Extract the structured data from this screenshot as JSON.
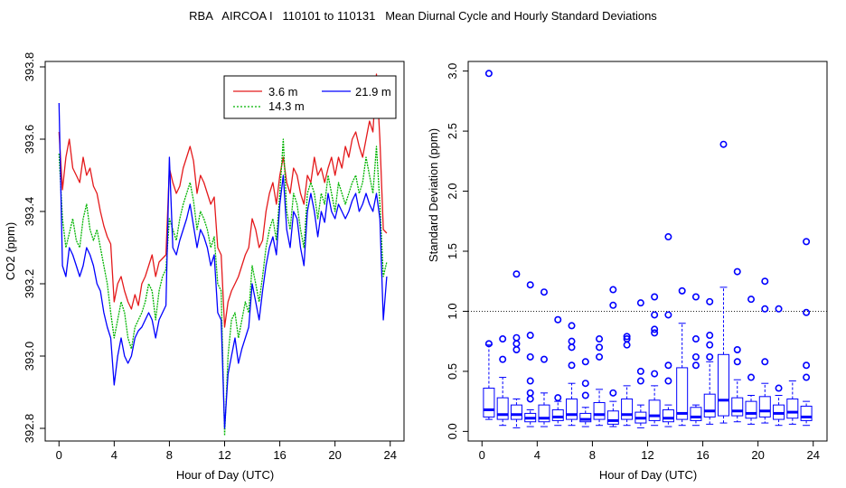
{
  "title": "RBA   AIRCOA I   110101 to 110131   Mean Diurnal Cycle and Hourly Standard Deviations",
  "chart_data": [
    {
      "type": "line",
      "xlabel": "Hour of Day (UTC)",
      "ylabel": "CO2 (ppm)",
      "xlim": [
        -1,
        25
      ],
      "ylim": [
        392.8,
        393.8
      ],
      "xticks": [
        "0",
        "4",
        "8",
        "12",
        "16",
        "20",
        "24"
      ],
      "yticks": [
        "392.8",
        "393.0",
        "393.2",
        "393.4",
        "393.6",
        "393.8"
      ],
      "x": [
        0,
        0.25,
        0.5,
        0.75,
        1,
        1.25,
        1.5,
        1.75,
        2,
        2.25,
        2.5,
        2.75,
        3,
        3.25,
        3.5,
        3.75,
        4,
        4.25,
        4.5,
        4.75,
        5,
        5.25,
        5.5,
        5.75,
        6,
        6.25,
        6.5,
        6.75,
        7,
        7.25,
        7.5,
        7.75,
        8,
        8.25,
        8.5,
        8.75,
        9,
        9.25,
        9.5,
        9.75,
        10,
        10.25,
        10.5,
        10.75,
        11,
        11.25,
        11.5,
        11.75,
        12,
        12.25,
        12.5,
        12.75,
        13,
        13.25,
        13.5,
        13.75,
        14,
        14.25,
        14.5,
        14.75,
        15,
        15.25,
        15.5,
        15.75,
        16,
        16.25,
        16.5,
        16.75,
        17,
        17.25,
        17.5,
        17.75,
        18,
        18.25,
        18.5,
        18.75,
        19,
        19.25,
        19.5,
        19.75,
        20,
        20.25,
        20.5,
        20.75,
        21,
        21.25,
        21.5,
        21.75,
        22,
        22.25,
        22.5,
        22.75,
        23,
        23.25,
        23.5,
        23.75
      ],
      "legend": [
        "3.6 m",
        "14.3 m",
        "21.9 m"
      ],
      "series": [
        {
          "name": "3.6 m",
          "color": "#e41a1c",
          "values": [
            393.62,
            393.46,
            393.55,
            393.6,
            393.52,
            393.5,
            393.48,
            393.55,
            393.5,
            393.52,
            393.47,
            393.45,
            393.4,
            393.36,
            393.33,
            393.31,
            393.15,
            393.2,
            393.22,
            393.18,
            393.15,
            393.13,
            393.17,
            393.14,
            393.2,
            393.22,
            393.25,
            393.28,
            393.22,
            393.26,
            393.27,
            393.28,
            393.52,
            393.48,
            393.45,
            393.47,
            393.52,
            393.55,
            393.58,
            393.54,
            393.45,
            393.5,
            393.48,
            393.45,
            393.42,
            393.44,
            393.3,
            393.28,
            393.08,
            393.15,
            393.18,
            393.2,
            393.22,
            393.25,
            393.28,
            393.3,
            393.38,
            393.35,
            393.3,
            393.32,
            393.4,
            393.45,
            393.48,
            393.42,
            393.5,
            393.55,
            393.48,
            393.45,
            393.52,
            393.5,
            393.45,
            393.42,
            393.5,
            393.48,
            393.55,
            393.5,
            393.52,
            393.48,
            393.52,
            393.55,
            393.5,
            393.55,
            393.52,
            393.58,
            393.55,
            393.6,
            393.62,
            393.58,
            393.55,
            393.6,
            393.65,
            393.62,
            393.78,
            393.6,
            393.35,
            393.34
          ]
        },
        {
          "name": "14.3 m",
          "color": "#00b400",
          "values": [
            393.56,
            393.38,
            393.3,
            393.34,
            393.38,
            393.32,
            393.3,
            393.38,
            393.42,
            393.35,
            393.32,
            393.35,
            393.3,
            393.25,
            393.2,
            393.12,
            393.05,
            393.1,
            393.15,
            393.12,
            393.05,
            393.02,
            393.08,
            393.1,
            393.12,
            393.15,
            393.2,
            393.18,
            393.1,
            393.18,
            393.22,
            393.24,
            393.38,
            393.35,
            393.32,
            393.38,
            393.42,
            393.45,
            393.48,
            393.43,
            393.35,
            393.4,
            393.38,
            393.35,
            393.3,
            393.33,
            393.2,
            393.18,
            392.78,
            393.0,
            393.1,
            393.12,
            393.05,
            393.1,
            393.15,
            393.12,
            393.25,
            393.2,
            393.15,
            393.22,
            393.3,
            393.35,
            393.38,
            393.32,
            393.45,
            393.6,
            393.4,
            393.35,
            393.45,
            393.42,
            393.35,
            393.3,
            393.45,
            393.48,
            393.45,
            393.38,
            393.45,
            393.42,
            393.5,
            393.45,
            393.4,
            393.48,
            393.45,
            393.42,
            393.45,
            393.48,
            393.5,
            393.45,
            393.48,
            393.55,
            393.5,
            393.45,
            393.58,
            393.42,
            393.22,
            393.26
          ]
        },
        {
          "name": "21.9 m",
          "color": "#0000ff",
          "values": [
            393.7,
            393.25,
            393.22,
            393.3,
            393.28,
            393.25,
            393.22,
            393.25,
            393.3,
            393.28,
            393.25,
            393.2,
            393.18,
            393.12,
            393.08,
            393.05,
            392.92,
            393.0,
            393.05,
            393.0,
            392.98,
            393.0,
            393.05,
            393.07,
            393.08,
            393.1,
            393.12,
            393.1,
            393.05,
            393.1,
            393.12,
            393.14,
            393.55,
            393.3,
            393.28,
            393.32,
            393.35,
            393.38,
            393.42,
            393.36,
            393.3,
            393.35,
            393.33,
            393.3,
            393.25,
            393.28,
            393.12,
            393.1,
            392.8,
            392.95,
            393.0,
            393.05,
            392.98,
            393.02,
            393.05,
            393.08,
            393.2,
            393.15,
            393.1,
            393.18,
            393.25,
            393.3,
            393.33,
            393.28,
            393.42,
            393.5,
            393.35,
            393.3,
            393.4,
            393.38,
            393.3,
            393.25,
            393.4,
            393.45,
            393.4,
            393.33,
            393.4,
            393.37,
            393.45,
            393.4,
            393.38,
            393.42,
            393.4,
            393.38,
            393.4,
            393.43,
            393.45,
            393.4,
            393.42,
            393.45,
            393.42,
            393.4,
            393.45,
            393.38,
            393.1,
            393.22
          ]
        }
      ]
    },
    {
      "type": "box",
      "xlabel": "Hour of Day (UTC)",
      "ylabel": "Standard Deviation (ppm)",
      "xlim": [
        -1,
        25
      ],
      "ylim": [
        0,
        3.0
      ],
      "xticks": [
        "0",
        "4",
        "8",
        "12",
        "16",
        "20",
        "24"
      ],
      "yticks": [
        "0.0",
        "0.5",
        "1.0",
        "1.5",
        "2.0",
        "2.5",
        "3.0"
      ],
      "reference_line": 1.0,
      "boxes": [
        {
          "hour": 0.5,
          "low": 0.1,
          "q1": 0.12,
          "median": 0.18,
          "q3": 0.36,
          "high": 0.72,
          "outliers": [
            0.73,
            2.98
          ]
        },
        {
          "hour": 1.5,
          "low": 0.05,
          "q1": 0.1,
          "median": 0.14,
          "q3": 0.28,
          "high": 0.45,
          "outliers": [
            0.6,
            0.77
          ]
        },
        {
          "hour": 2.5,
          "low": 0.03,
          "q1": 0.1,
          "median": 0.14,
          "q3": 0.22,
          "high": 0.27,
          "outliers": [
            0.68,
            0.73,
            0.78,
            1.31
          ]
        },
        {
          "hour": 3.5,
          "low": 0.04,
          "q1": 0.08,
          "median": 0.11,
          "q3": 0.15,
          "high": 0.18,
          "outliers": [
            0.27,
            0.32,
            0.42,
            0.62,
            0.8,
            1.22
          ]
        },
        {
          "hour": 4.5,
          "low": 0.04,
          "q1": 0.08,
          "median": 0.11,
          "q3": 0.22,
          "high": 0.32,
          "outliers": [
            0.6,
            1.16
          ]
        },
        {
          "hour": 5.5,
          "low": 0.05,
          "q1": 0.09,
          "median": 0.12,
          "q3": 0.18,
          "high": 0.25,
          "outliers": [
            0.28,
            0.93
          ]
        },
        {
          "hour": 6.5,
          "low": 0.05,
          "q1": 0.1,
          "median": 0.14,
          "q3": 0.27,
          "high": 0.4,
          "outliers": [
            0.55,
            0.7,
            0.75,
            0.88
          ]
        },
        {
          "hour": 7.5,
          "low": 0.04,
          "q1": 0.08,
          "median": 0.1,
          "q3": 0.15,
          "high": 0.2,
          "outliers": [
            0.3,
            0.4,
            0.58
          ]
        },
        {
          "hour": 8.5,
          "low": 0.05,
          "q1": 0.1,
          "median": 0.14,
          "q3": 0.24,
          "high": 0.35,
          "outliers": [
            0.62,
            0.7,
            0.77
          ]
        },
        {
          "hour": 9.5,
          "low": 0.04,
          "q1": 0.06,
          "median": 0.09,
          "q3": 0.17,
          "high": 0.25,
          "outliers": [
            0.32,
            1.05,
            1.18
          ]
        },
        {
          "hour": 10.5,
          "low": 0.05,
          "q1": 0.1,
          "median": 0.14,
          "q3": 0.27,
          "high": 0.38,
          "outliers": [
            0.72,
            0.77,
            0.79
          ]
        },
        {
          "hour": 11.5,
          "low": 0.03,
          "q1": 0.07,
          "median": 0.11,
          "q3": 0.16,
          "high": 0.22,
          "outliers": [
            0.42,
            0.5,
            1.07
          ]
        },
        {
          "hour": 12.5,
          "low": 0.05,
          "q1": 0.09,
          "median": 0.13,
          "q3": 0.26,
          "high": 0.38,
          "outliers": [
            0.48,
            0.82,
            0.85,
            0.97,
            1.12
          ]
        },
        {
          "hour": 13.5,
          "low": 0.04,
          "q1": 0.08,
          "median": 0.11,
          "q3": 0.18,
          "high": 0.22,
          "outliers": [
            0.42,
            0.55,
            0.97,
            1.62
          ]
        },
        {
          "hour": 14.5,
          "low": 0.05,
          "q1": 0.1,
          "median": 0.15,
          "q3": 0.53,
          "high": 0.9,
          "outliers": [
            1.17
          ]
        },
        {
          "hour": 15.5,
          "low": 0.05,
          "q1": 0.09,
          "median": 0.12,
          "q3": 0.2,
          "high": 0.22,
          "outliers": [
            0.55,
            0.62,
            0.77,
            1.12
          ]
        },
        {
          "hour": 16.5,
          "low": 0.06,
          "q1": 0.12,
          "median": 0.17,
          "q3": 0.31,
          "high": 0.58,
          "outliers": [
            0.62,
            0.72,
            0.8,
            1.08
          ]
        },
        {
          "hour": 17.5,
          "low": 0.07,
          "q1": 0.13,
          "median": 0.26,
          "q3": 0.64,
          "high": 1.2,
          "outliers": [
            2.39
          ]
        },
        {
          "hour": 18.5,
          "low": 0.08,
          "q1": 0.13,
          "median": 0.17,
          "q3": 0.28,
          "high": 0.43,
          "outliers": [
            0.58,
            0.68,
            1.33
          ]
        },
        {
          "hour": 19.5,
          "low": 0.06,
          "q1": 0.11,
          "median": 0.15,
          "q3": 0.25,
          "high": 0.3,
          "outliers": [
            0.45,
            1.1
          ]
        },
        {
          "hour": 20.5,
          "low": 0.07,
          "q1": 0.12,
          "median": 0.17,
          "q3": 0.29,
          "high": 0.4,
          "outliers": [
            0.58,
            1.02,
            1.25
          ]
        },
        {
          "hour": 21.5,
          "low": 0.05,
          "q1": 0.1,
          "median": 0.15,
          "q3": 0.22,
          "high": 0.3,
          "outliers": [
            0.36,
            1.02
          ]
        },
        {
          "hour": 22.5,
          "low": 0.06,
          "q1": 0.11,
          "median": 0.16,
          "q3": 0.27,
          "high": 0.42,
          "outliers": []
        },
        {
          "hour": 23.5,
          "low": 0.05,
          "q1": 0.09,
          "median": 0.12,
          "q3": 0.21,
          "high": 0.25,
          "outliers": [
            0.45,
            0.55,
            0.99,
            1.58
          ]
        }
      ]
    }
  ]
}
